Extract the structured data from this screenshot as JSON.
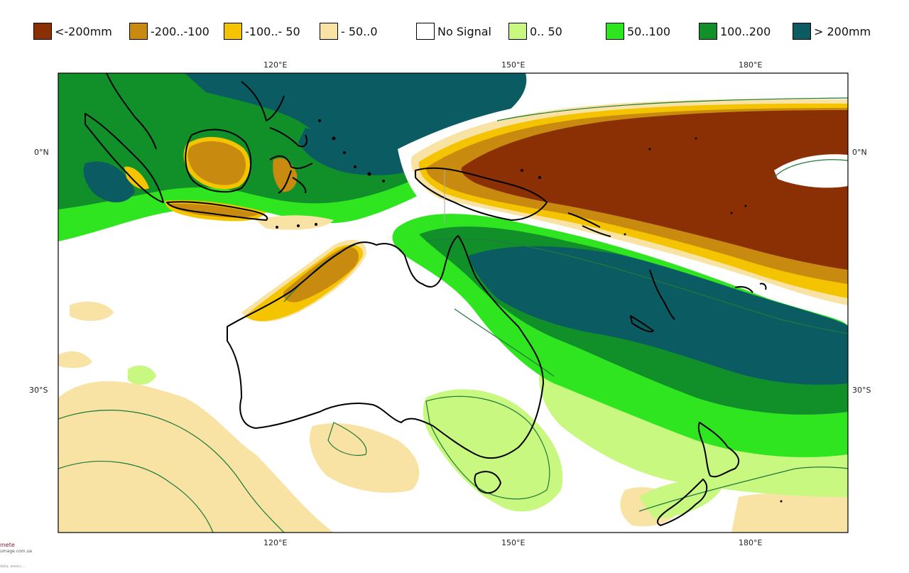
{
  "legend": [
    {
      "label": "<-200mm",
      "color": "#8b2f05"
    },
    {
      "label": "-200..-100",
      "color": "#c98a10"
    },
    {
      "label": "-100..- 50",
      "color": "#f5c400"
    },
    {
      "label": "- 50..0",
      "color": "#f8e3a4"
    },
    {
      "label": "No Signal",
      "color": "#ffffff"
    },
    {
      "label": "0.. 50",
      "color": "#c8f880"
    },
    {
      "label": "50..100",
      "color": "#2ee51f"
    },
    {
      "label": "100..200",
      "color": "#11902a"
    },
    {
      "label": "> 200mm",
      "color": "#0b5b63"
    }
  ],
  "map": {
    "lon_labels_top": [
      "120°E",
      "150°E",
      "180°E"
    ],
    "lon_labels_bottom": [
      "120°E",
      "150°E",
      "180°E"
    ],
    "lat_labels_left": [
      "0°N",
      "30°S"
    ],
    "lat_labels_right": [
      "0°N",
      "30°S"
    ],
    "coastline_color": "#000000",
    "contour_color": "#1f7a3a"
  },
  "credit": {
    "line1": "mete",
    "line2": "umage.com.ua",
    "line3": "data: www.c..."
  }
}
